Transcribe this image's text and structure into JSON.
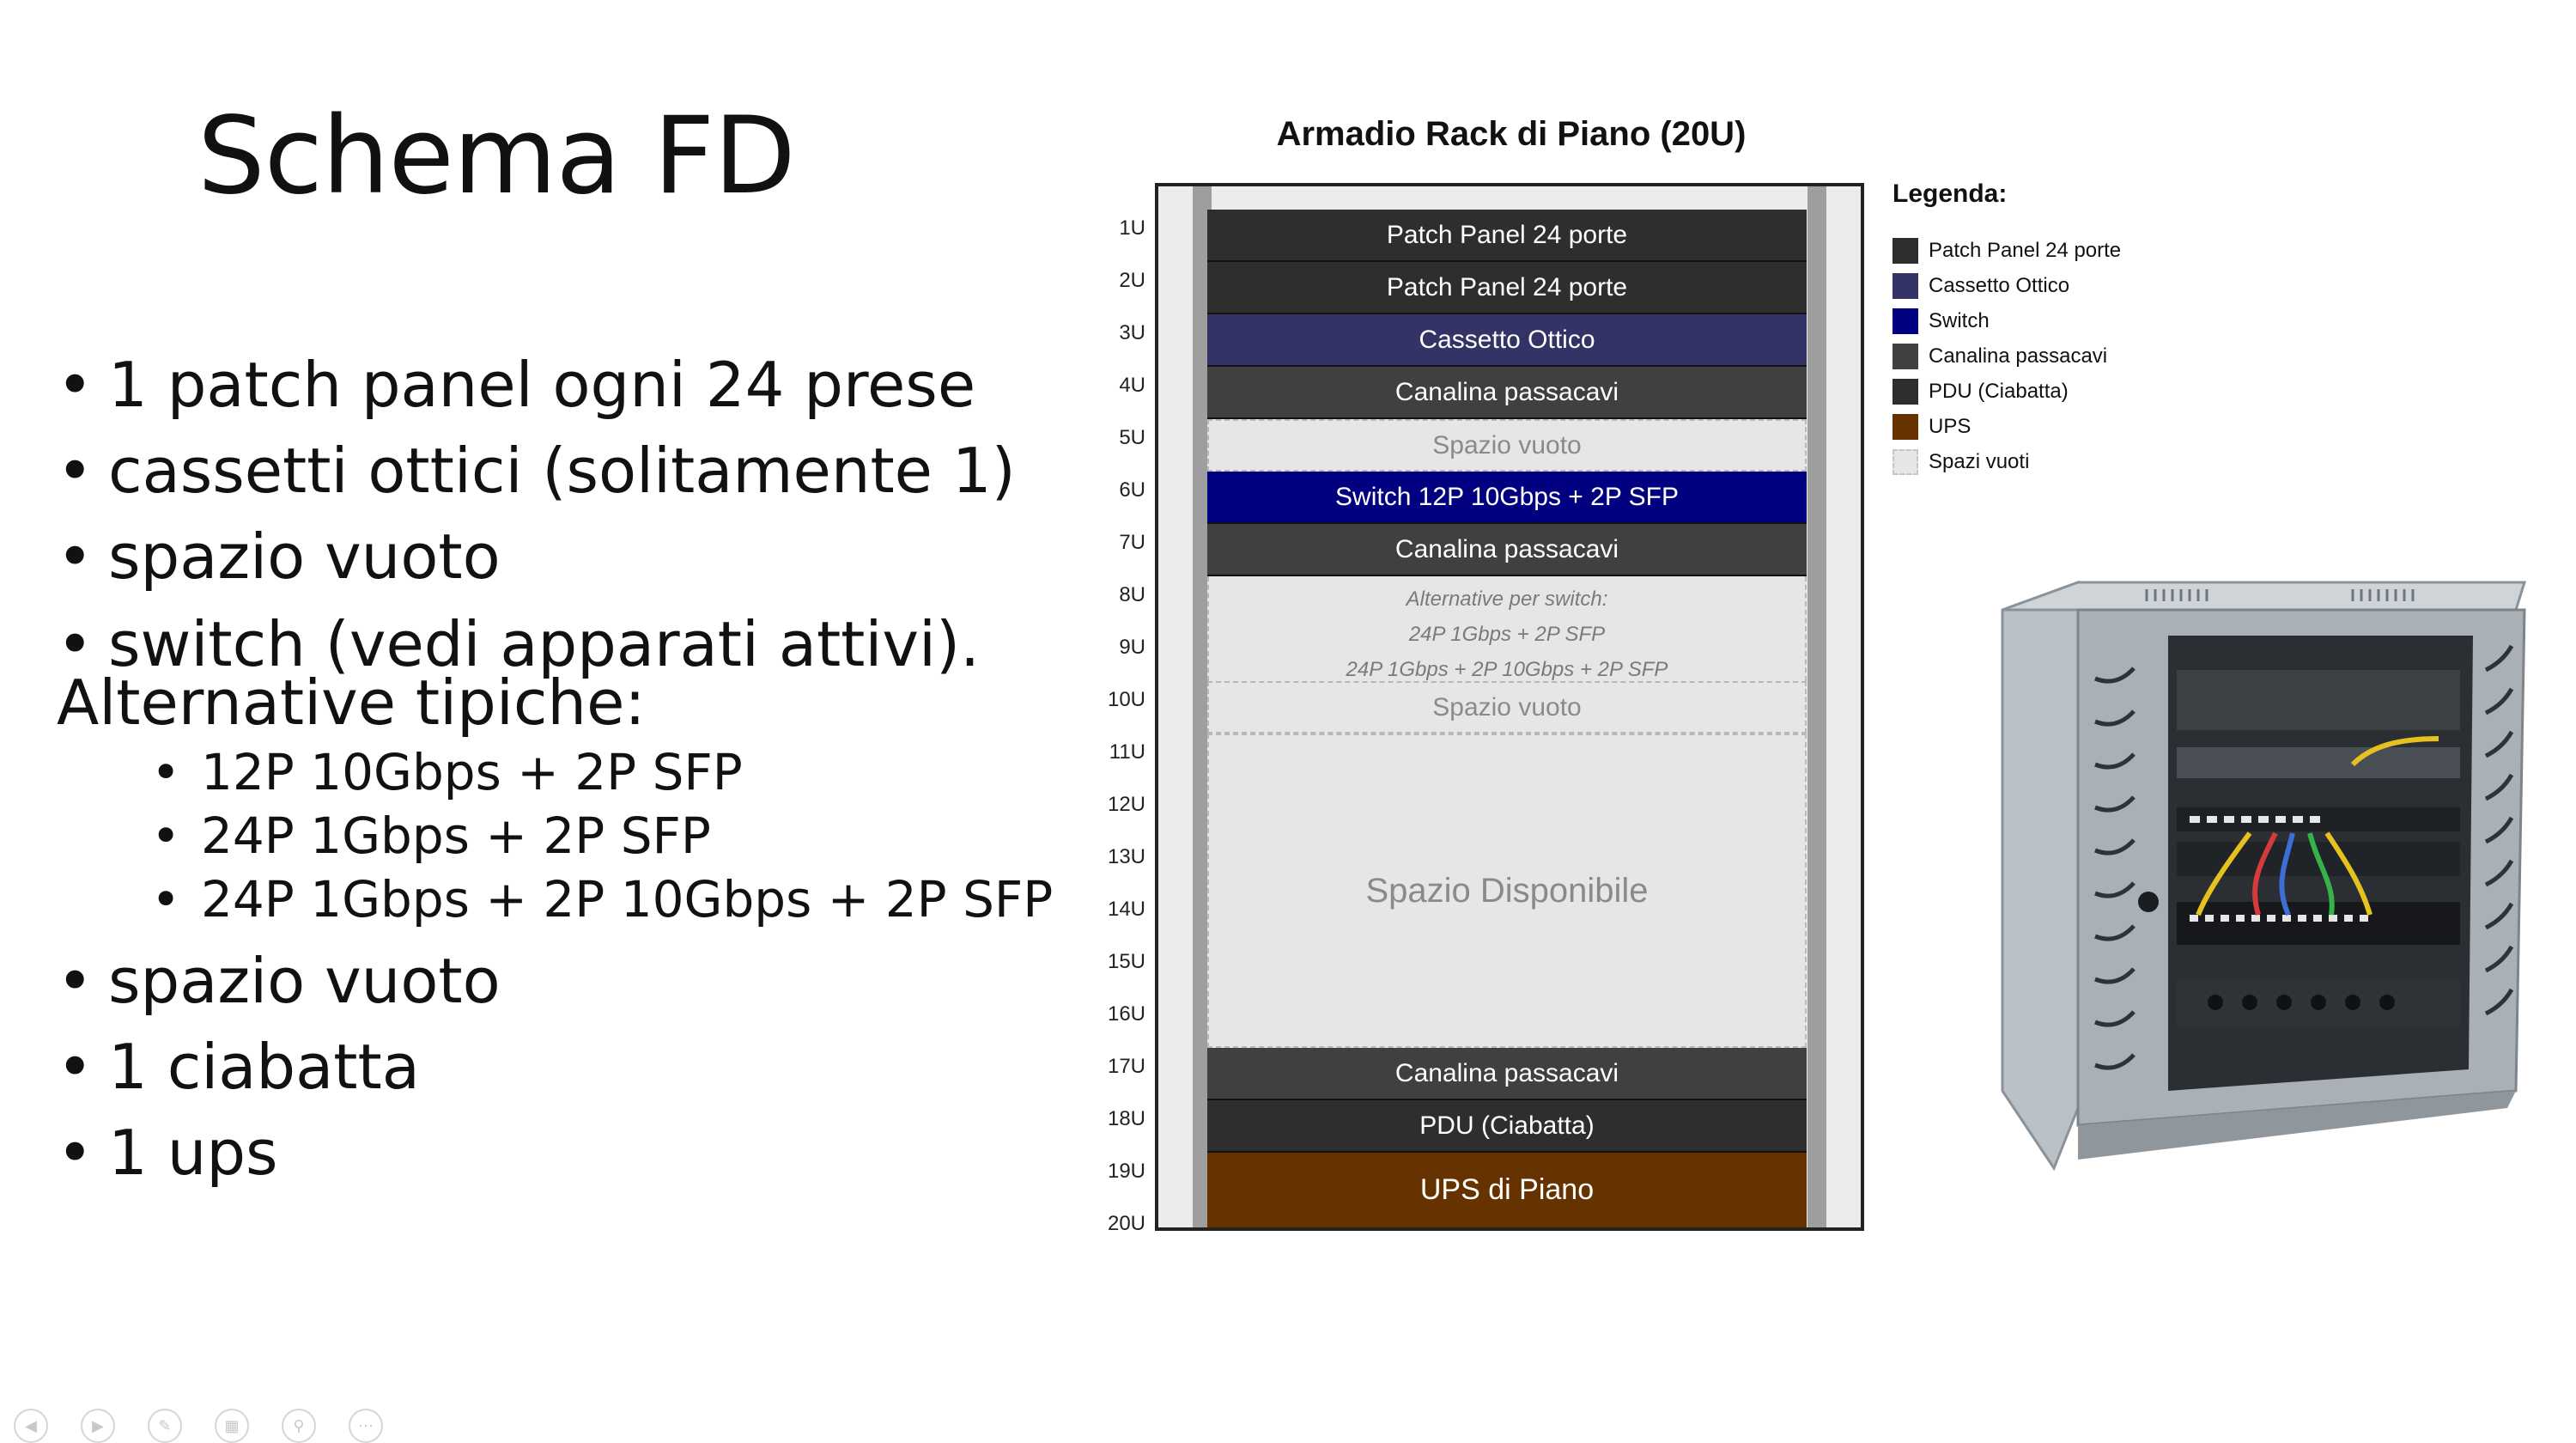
{
  "slide": {
    "title": "Schema FD",
    "bullets": [
      "1 patch panel ogni 24 prese",
      "cassetti ottici (solitamente 1)",
      "spazio vuoto",
      "switch (vedi apparati attivi)."
    ],
    "alt_heading": "Alternative tipiche:",
    "alternatives": [
      "12P 10Gbps + 2P SFP",
      "24P 1Gbps + 2P SFP",
      "24P 1Gbps + 2P 10Gbps + 2P SFP"
    ],
    "bullets_after": [
      "spazio vuoto",
      "1 ciabatta",
      "1 ups"
    ],
    "bullet_glyph": "•"
  },
  "rack": {
    "title": "Armadio Rack di Piano (20U)",
    "units": [
      "1U",
      "2U",
      "3U",
      "4U",
      "5U",
      "6U",
      "7U",
      "8U",
      "9U",
      "10U",
      "11U",
      "12U",
      "13U",
      "14U",
      "15U",
      "16U",
      "17U",
      "18U",
      "19U",
      "20U"
    ],
    "slots": {
      "patch_panel_1": "Patch Panel 24 porte",
      "patch_panel_2": "Patch Panel 24 porte",
      "optical": "Cassetto Ottico",
      "cable_mgr_1": "Canalina passacavi",
      "empty_1": "Spazio vuoto",
      "switch": "Switch 12P 10Gbps + 2P SFP",
      "cable_mgr_2": "Canalina passacavi",
      "alt_title": "Alternative per switch:",
      "alt_1": "24P 1Gbps + 2P SFP",
      "alt_2": "24P 1Gbps + 2P 10Gbps + 2P SFP",
      "empty_2": "Spazio vuoto",
      "available": "Spazio Disponibile",
      "cable_mgr_3": "Canalina passacavi",
      "pdu": "PDU (Ciabatta)",
      "ups": "UPS di Piano"
    }
  },
  "legend": {
    "title": "Legenda:",
    "items": [
      {
        "label": "Patch Panel 24 porte",
        "color": "#2e2e2e"
      },
      {
        "label": "Cassetto Ottico",
        "color": "#333366"
      },
      {
        "label": "Switch",
        "color": "#000080"
      },
      {
        "label": "Canalina passacavi",
        "color": "#404040"
      },
      {
        "label": "PDU (Ciabatta)",
        "color": "#2e2e2e"
      },
      {
        "label": "UPS",
        "color": "#663300"
      },
      {
        "label": "Spazi vuoti",
        "color": "#e6e6e6"
      }
    ]
  },
  "nav_icons": [
    "prev-icon",
    "next-icon",
    "pen-icon",
    "slides-icon",
    "zoom-icon",
    "more-icon"
  ]
}
